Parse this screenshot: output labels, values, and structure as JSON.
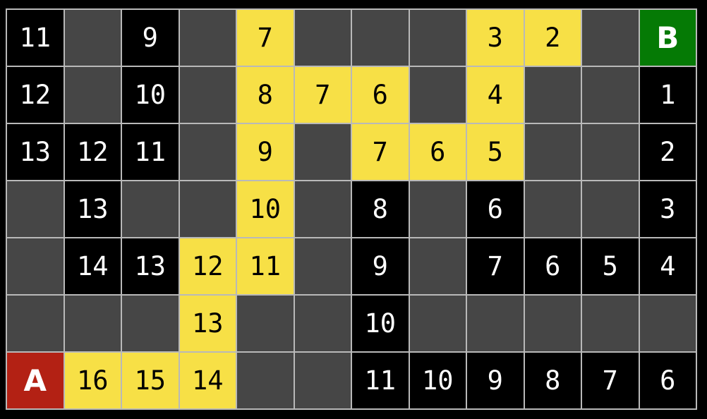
{
  "colors": {
    "background": "#000000",
    "gridline": "#b9b9b9",
    "empty_cell": "#464646",
    "explored_cell": "#000000",
    "explored_text": "#ffffff",
    "path_cell": "#f7e046",
    "path_text": "#000000",
    "start_cell": "#b32114",
    "goal_cell": "#057a05",
    "marker_text": "#ffffff"
  },
  "grid": {
    "rows": 7,
    "cols": 12,
    "start_label": "A",
    "goal_label": "B",
    "cells": [
      [
        {
          "t": "explored",
          "v": "11"
        },
        {
          "t": "empty",
          "v": ""
        },
        {
          "t": "explored",
          "v": "9"
        },
        {
          "t": "empty",
          "v": ""
        },
        {
          "t": "path",
          "v": "7"
        },
        {
          "t": "empty",
          "v": ""
        },
        {
          "t": "empty",
          "v": ""
        },
        {
          "t": "empty",
          "v": ""
        },
        {
          "t": "path",
          "v": "3"
        },
        {
          "t": "path",
          "v": "2"
        },
        {
          "t": "empty",
          "v": ""
        },
        {
          "t": "goal",
          "v": "B"
        }
      ],
      [
        {
          "t": "explored",
          "v": "12"
        },
        {
          "t": "empty",
          "v": ""
        },
        {
          "t": "explored",
          "v": "10"
        },
        {
          "t": "empty",
          "v": ""
        },
        {
          "t": "path",
          "v": "8"
        },
        {
          "t": "path",
          "v": "7"
        },
        {
          "t": "path",
          "v": "6"
        },
        {
          "t": "empty",
          "v": ""
        },
        {
          "t": "path",
          "v": "4"
        },
        {
          "t": "empty",
          "v": ""
        },
        {
          "t": "empty",
          "v": ""
        },
        {
          "t": "explored",
          "v": "1"
        }
      ],
      [
        {
          "t": "explored",
          "v": "13"
        },
        {
          "t": "explored",
          "v": "12"
        },
        {
          "t": "explored",
          "v": "11"
        },
        {
          "t": "empty",
          "v": ""
        },
        {
          "t": "path",
          "v": "9"
        },
        {
          "t": "empty",
          "v": ""
        },
        {
          "t": "path",
          "v": "7"
        },
        {
          "t": "path",
          "v": "6"
        },
        {
          "t": "path",
          "v": "5"
        },
        {
          "t": "empty",
          "v": ""
        },
        {
          "t": "empty",
          "v": ""
        },
        {
          "t": "explored",
          "v": "2"
        }
      ],
      [
        {
          "t": "empty",
          "v": ""
        },
        {
          "t": "explored",
          "v": "13"
        },
        {
          "t": "empty",
          "v": ""
        },
        {
          "t": "empty",
          "v": ""
        },
        {
          "t": "path",
          "v": "10"
        },
        {
          "t": "empty",
          "v": ""
        },
        {
          "t": "explored",
          "v": "8"
        },
        {
          "t": "empty",
          "v": ""
        },
        {
          "t": "explored",
          "v": "6"
        },
        {
          "t": "empty",
          "v": ""
        },
        {
          "t": "empty",
          "v": ""
        },
        {
          "t": "explored",
          "v": "3"
        }
      ],
      [
        {
          "t": "empty",
          "v": ""
        },
        {
          "t": "explored",
          "v": "14"
        },
        {
          "t": "explored",
          "v": "13"
        },
        {
          "t": "path",
          "v": "12"
        },
        {
          "t": "path",
          "v": "11"
        },
        {
          "t": "empty",
          "v": ""
        },
        {
          "t": "explored",
          "v": "9"
        },
        {
          "t": "empty",
          "v": ""
        },
        {
          "t": "explored",
          "v": "7"
        },
        {
          "t": "explored",
          "v": "6"
        },
        {
          "t": "explored",
          "v": "5"
        },
        {
          "t": "explored",
          "v": "4"
        }
      ],
      [
        {
          "t": "empty",
          "v": ""
        },
        {
          "t": "empty",
          "v": ""
        },
        {
          "t": "empty",
          "v": ""
        },
        {
          "t": "path",
          "v": "13"
        },
        {
          "t": "empty",
          "v": ""
        },
        {
          "t": "empty",
          "v": ""
        },
        {
          "t": "explored",
          "v": "10"
        },
        {
          "t": "empty",
          "v": ""
        },
        {
          "t": "empty",
          "v": ""
        },
        {
          "t": "empty",
          "v": ""
        },
        {
          "t": "empty",
          "v": ""
        },
        {
          "t": "empty",
          "v": ""
        }
      ],
      [
        {
          "t": "start",
          "v": "A"
        },
        {
          "t": "path",
          "v": "16"
        },
        {
          "t": "path",
          "v": "15"
        },
        {
          "t": "path",
          "v": "14"
        },
        {
          "t": "empty",
          "v": ""
        },
        {
          "t": "empty",
          "v": ""
        },
        {
          "t": "explored",
          "v": "11"
        },
        {
          "t": "explored",
          "v": "10"
        },
        {
          "t": "explored",
          "v": "9"
        },
        {
          "t": "explored",
          "v": "8"
        },
        {
          "t": "explored",
          "v": "7"
        },
        {
          "t": "explored",
          "v": "6"
        }
      ]
    ]
  }
}
